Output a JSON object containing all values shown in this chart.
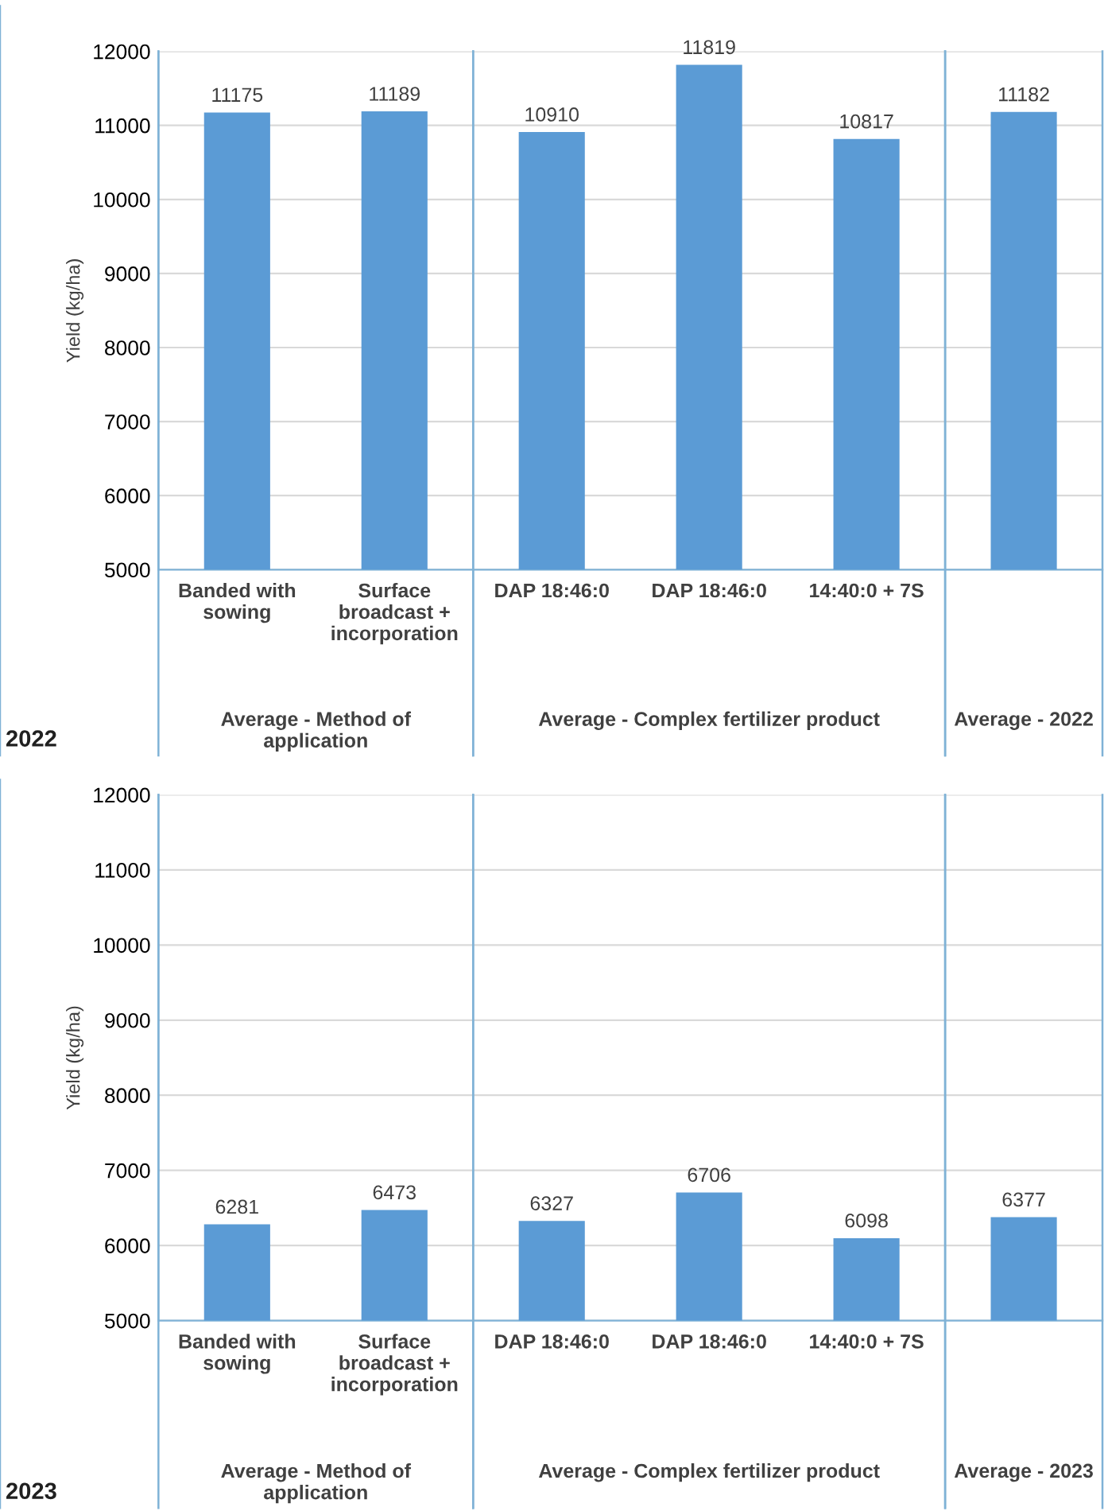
{
  "chart_data": [
    {
      "type": "bar",
      "ylabel": "Yield (kg/ha)",
      "categories": [
        "Banded with sowing",
        "Surface broadcast + incorporation",
        "DAP 18:46:0",
        "DAP 18:46:0",
        "14:40:0 + 7S",
        null
      ],
      "values": [
        11175,
        11189,
        10910,
        11819,
        10817,
        11182
      ],
      "color": "#5b9bd5",
      "ylim": [
        5000,
        12000
      ],
      "yticks": [
        5000,
        6000,
        7000,
        8000,
        9000,
        10000,
        11000,
        12000
      ],
      "grid": "y",
      "data_labels": true,
      "annotations": [
        "2022",
        "Average - Method of application",
        "Average - Complex fertilizer product",
        "Average - 2022"
      ]
    },
    {
      "type": "bar",
      "ylabel": "Yield (kg/ha)",
      "categories": [
        "Banded with sowing",
        "Surface broadcast + incorporation",
        "DAP 18:46:0",
        "DAP 18:46:0",
        "14:40:0 + 7S",
        null
      ],
      "values": [
        6281,
        6473,
        6327,
        6706,
        6098,
        6377
      ],
      "color": "#5b9bd5",
      "ylim": [
        5000,
        12000
      ],
      "yticks": [
        5000,
        6000,
        7000,
        8000,
        9000,
        10000,
        11000,
        12000
      ],
      "grid": "y",
      "data_labels": true,
      "annotations": [
        "2023",
        "Average - Method of application",
        "Average - Complex fertilizer product",
        "Average - 2023"
      ]
    }
  ]
}
